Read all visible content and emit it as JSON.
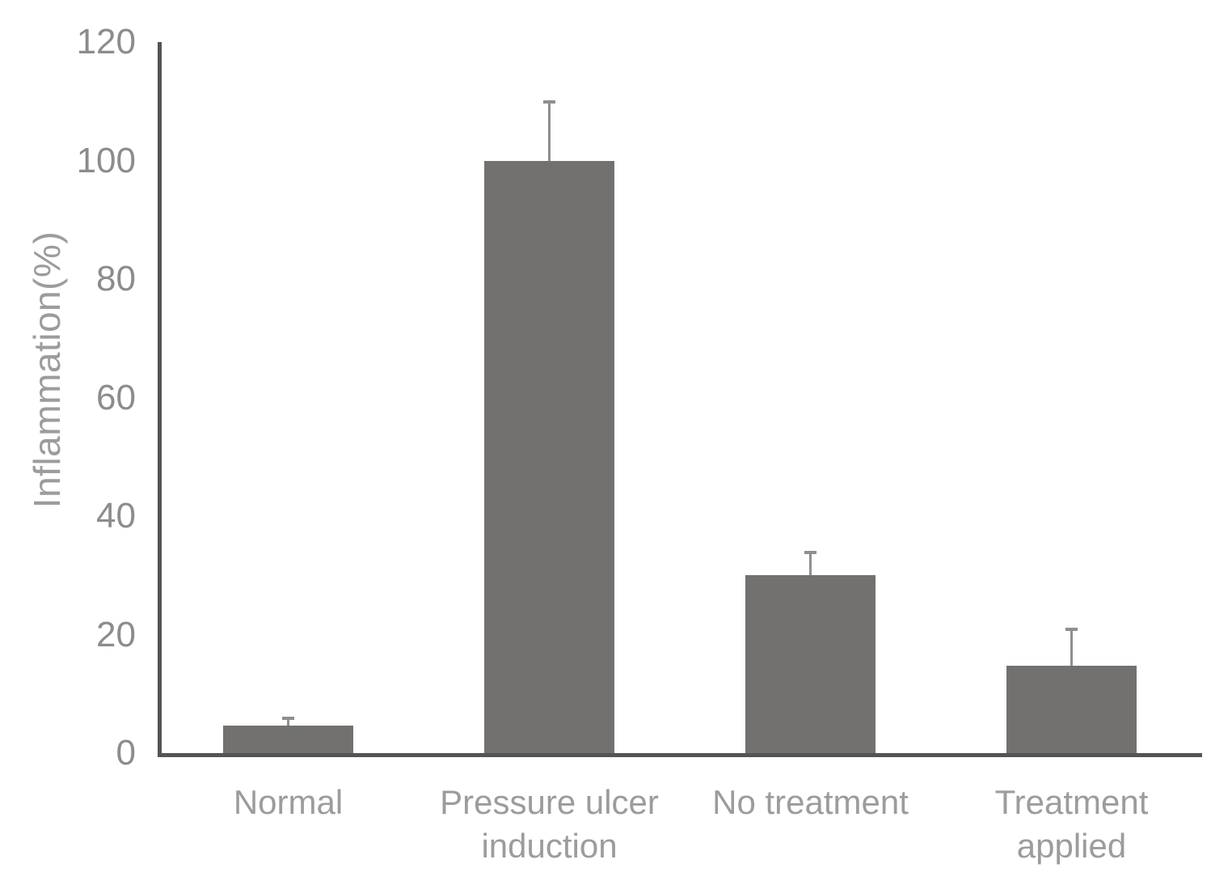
{
  "chart_data": {
    "type": "bar",
    "title": "",
    "xlabel": "",
    "ylabel": "Inflammation(%)",
    "ylim": [
      0,
      120
    ],
    "yticks": [
      0,
      20,
      40,
      60,
      80,
      100,
      120
    ],
    "grid": false,
    "legend_position": "none",
    "categories": [
      "Normal",
      "Pressure ulcer induction",
      "No treatment",
      "Treatment applied"
    ],
    "category_label_lines": [
      [
        "Normal"
      ],
      [
        "Pressure ulcer",
        "induction"
      ],
      [
        "No treatment"
      ],
      [
        "Treatment",
        "applied"
      ]
    ],
    "series": [
      {
        "name": "Inflammation",
        "values": [
          4.7,
          100,
          30,
          14.8
        ],
        "errors_plus": [
          1.3,
          10,
          4,
          6.2
        ]
      }
    ],
    "colors": {
      "bar_fill": "#737070",
      "axis_line": "#555353",
      "error_bar": "#8f8f8f",
      "tick_text": "#8c8c8c",
      "label_text": "#9c9c9c"
    }
  }
}
